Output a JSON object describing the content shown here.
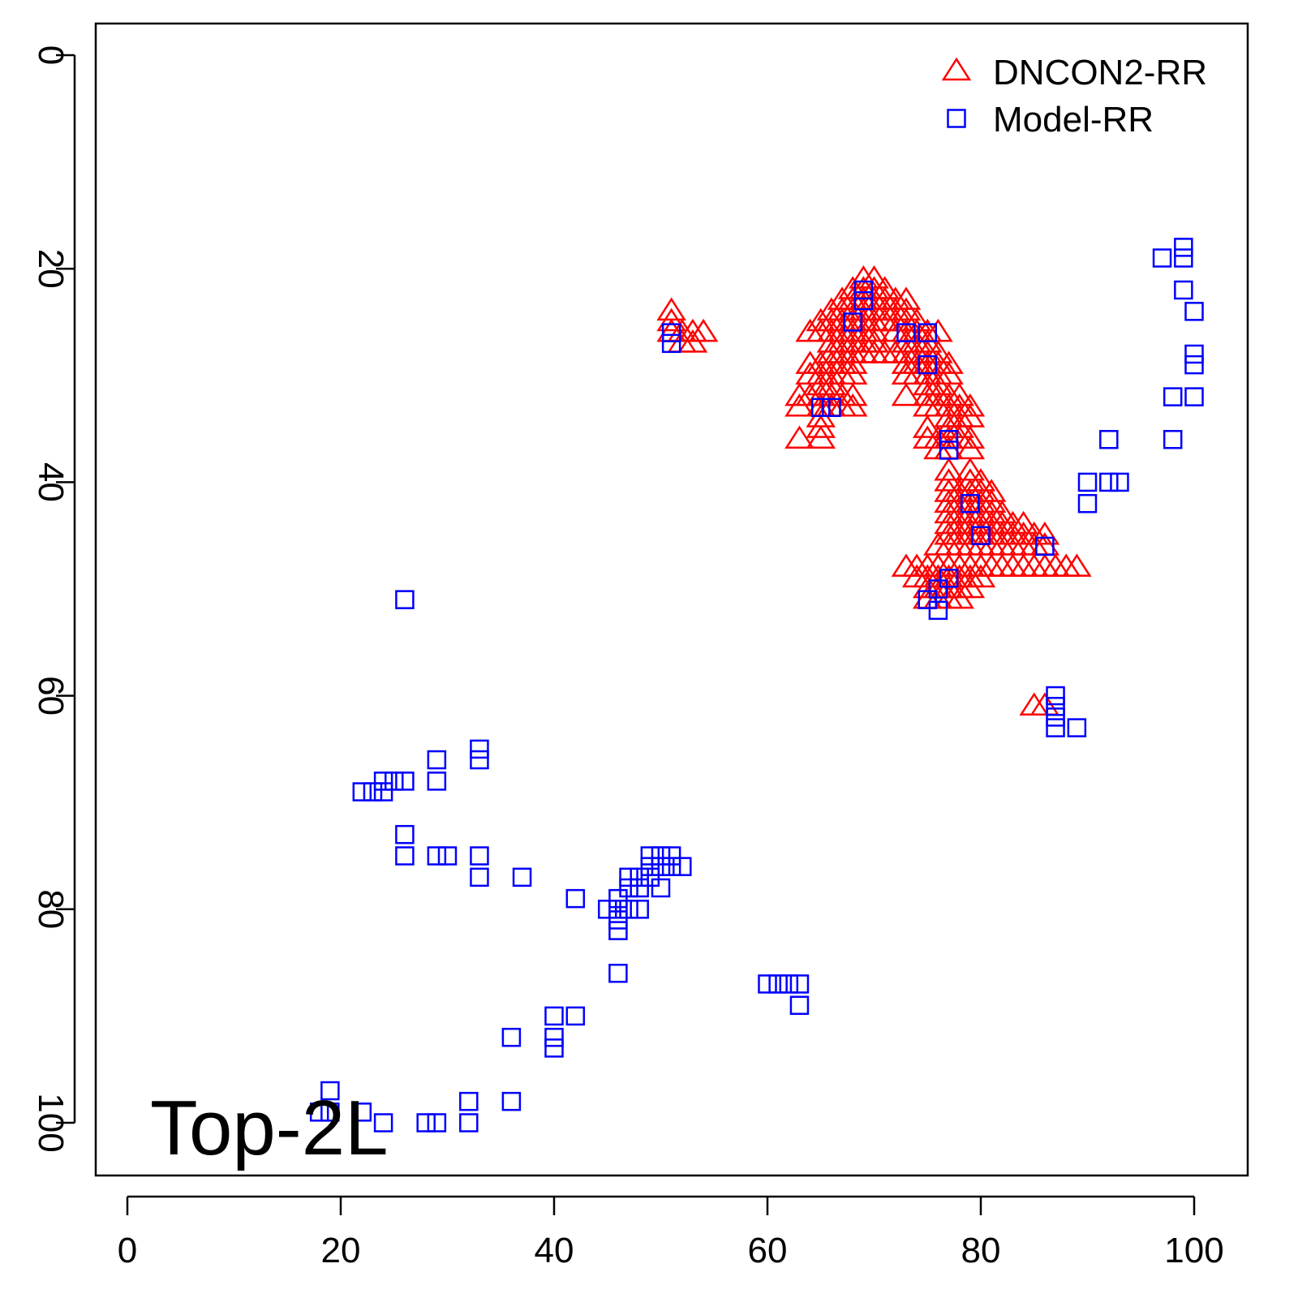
{
  "chart_data": {
    "type": "scatter",
    "annotation": "Top-2L",
    "xlim": [
      -1.5,
      106.5
    ],
    "ylim": [
      -3,
      105
    ],
    "y_inverted": true,
    "grid": false,
    "legend_placement": "top-right",
    "x_ticks": [
      0,
      20,
      40,
      60,
      80,
      100
    ],
    "y_ticks": [
      0,
      20,
      40,
      60,
      80,
      100
    ],
    "series": [
      {
        "name": "DNCON2-RR",
        "marker": "triangle",
        "color": "#ff0000",
        "points": [
          [
            51,
            24
          ],
          [
            51,
            25
          ],
          [
            51,
            26
          ],
          [
            52,
            26
          ],
          [
            53,
            26
          ],
          [
            54,
            26
          ],
          [
            52,
            27
          ],
          [
            53,
            27
          ],
          [
            69,
            21
          ],
          [
            70,
            21
          ],
          [
            68,
            22
          ],
          [
            69,
            22
          ],
          [
            70,
            22
          ],
          [
            71,
            22
          ],
          [
            67,
            23
          ],
          [
            68,
            23
          ],
          [
            69,
            23
          ],
          [
            70,
            23
          ],
          [
            71,
            23
          ],
          [
            72,
            23
          ],
          [
            73,
            23
          ],
          [
            66,
            24
          ],
          [
            67,
            24
          ],
          [
            68,
            24
          ],
          [
            69,
            24
          ],
          [
            70,
            24
          ],
          [
            71,
            24
          ],
          [
            72,
            24
          ],
          [
            73,
            24
          ],
          [
            65,
            25
          ],
          [
            66,
            25
          ],
          [
            67,
            25
          ],
          [
            68,
            25
          ],
          [
            69,
            25
          ],
          [
            70,
            25
          ],
          [
            71,
            25
          ],
          [
            72,
            25
          ],
          [
            73,
            25
          ],
          [
            74,
            25
          ],
          [
            64,
            26
          ],
          [
            65,
            26
          ],
          [
            66,
            26
          ],
          [
            67,
            26
          ],
          [
            68,
            26
          ],
          [
            69,
            26
          ],
          [
            70,
            26
          ],
          [
            72,
            26
          ],
          [
            73,
            26
          ],
          [
            74,
            26
          ],
          [
            75,
            26
          ],
          [
            76,
            26
          ],
          [
            66,
            27
          ],
          [
            67,
            27
          ],
          [
            68,
            27
          ],
          [
            69,
            27
          ],
          [
            70,
            27
          ],
          [
            73,
            27
          ],
          [
            74,
            27
          ],
          [
            75,
            27
          ],
          [
            66,
            28
          ],
          [
            67,
            28
          ],
          [
            68,
            28
          ],
          [
            69,
            28
          ],
          [
            70,
            28
          ],
          [
            71,
            28
          ],
          [
            72,
            28
          ],
          [
            73,
            28
          ],
          [
            74,
            28
          ],
          [
            75,
            28
          ],
          [
            76,
            28
          ],
          [
            64,
            29
          ],
          [
            65,
            29
          ],
          [
            66,
            29
          ],
          [
            67,
            29
          ],
          [
            68,
            29
          ],
          [
            73,
            29
          ],
          [
            74,
            29
          ],
          [
            75,
            29
          ],
          [
            76,
            29
          ],
          [
            77,
            29
          ],
          [
            64,
            30
          ],
          [
            65,
            30
          ],
          [
            66,
            30
          ],
          [
            67,
            30
          ],
          [
            68,
            30
          ],
          [
            73,
            30
          ],
          [
            74,
            30
          ],
          [
            75,
            30
          ],
          [
            76,
            30
          ],
          [
            77,
            30
          ],
          [
            65,
            31
          ],
          [
            66,
            31
          ],
          [
            75,
            31
          ],
          [
            76,
            31
          ],
          [
            63,
            32
          ],
          [
            64,
            32
          ],
          [
            65,
            32
          ],
          [
            66,
            32
          ],
          [
            67,
            32
          ],
          [
            68,
            32
          ],
          [
            73,
            32
          ],
          [
            75,
            32
          ],
          [
            76,
            32
          ],
          [
            77,
            32
          ],
          [
            78,
            32
          ],
          [
            63,
            33
          ],
          [
            65,
            33
          ],
          [
            66,
            33
          ],
          [
            67,
            33
          ],
          [
            68,
            33
          ],
          [
            75,
            33
          ],
          [
            76,
            33
          ],
          [
            77,
            33
          ],
          [
            78,
            33
          ],
          [
            79,
            33
          ],
          [
            65,
            34
          ],
          [
            77,
            34
          ],
          [
            78,
            34
          ],
          [
            79,
            34
          ],
          [
            65,
            35
          ],
          [
            75,
            35
          ],
          [
            77,
            35
          ],
          [
            78,
            35
          ],
          [
            63,
            36
          ],
          [
            65,
            36
          ],
          [
            75,
            36
          ],
          [
            76,
            36
          ],
          [
            77,
            36
          ],
          [
            78,
            36
          ],
          [
            79,
            36
          ],
          [
            76,
            37
          ],
          [
            77,
            37
          ],
          [
            79,
            37
          ],
          [
            77,
            39
          ],
          [
            79,
            39
          ],
          [
            77,
            40
          ],
          [
            79,
            40
          ],
          [
            80,
            40
          ],
          [
            77,
            41
          ],
          [
            78,
            41
          ],
          [
            79,
            41
          ],
          [
            80,
            41
          ],
          [
            81,
            41
          ],
          [
            77,
            42
          ],
          [
            78,
            42
          ],
          [
            79,
            42
          ],
          [
            80,
            42
          ],
          [
            81,
            42
          ],
          [
            77,
            43
          ],
          [
            78,
            43
          ],
          [
            79,
            43
          ],
          [
            80,
            43
          ],
          [
            81,
            43
          ],
          [
            82,
            43
          ],
          [
            77,
            44
          ],
          [
            78,
            44
          ],
          [
            79,
            44
          ],
          [
            80,
            44
          ],
          [
            81,
            44
          ],
          [
            82,
            44
          ],
          [
            83,
            44
          ],
          [
            84,
            44
          ],
          [
            77,
            45
          ],
          [
            78,
            45
          ],
          [
            79,
            45
          ],
          [
            80,
            45
          ],
          [
            81,
            45
          ],
          [
            82,
            45
          ],
          [
            83,
            45
          ],
          [
            84,
            45
          ],
          [
            85,
            45
          ],
          [
            86,
            45
          ],
          [
            76,
            46
          ],
          [
            77,
            46
          ],
          [
            78,
            46
          ],
          [
            79,
            46
          ],
          [
            80,
            46
          ],
          [
            81,
            46
          ],
          [
            82,
            46
          ],
          [
            83,
            46
          ],
          [
            84,
            46
          ],
          [
            85,
            46
          ],
          [
            86,
            46
          ],
          [
            73,
            48
          ],
          [
            74,
            48
          ],
          [
            75,
            48
          ],
          [
            76,
            48
          ],
          [
            77,
            48
          ],
          [
            78,
            48
          ],
          [
            79,
            48
          ],
          [
            80,
            48
          ],
          [
            81,
            48
          ],
          [
            82,
            48
          ],
          [
            83,
            48
          ],
          [
            84,
            48
          ],
          [
            85,
            48
          ],
          [
            86,
            48
          ],
          [
            87,
            48
          ],
          [
            88,
            48
          ],
          [
            89,
            48
          ],
          [
            74,
            49
          ],
          [
            75,
            49
          ],
          [
            76,
            49
          ],
          [
            77,
            49
          ],
          [
            78,
            49
          ],
          [
            79,
            49
          ],
          [
            80,
            49
          ],
          [
            75,
            50
          ],
          [
            76,
            50
          ],
          [
            77,
            50
          ],
          [
            78,
            50
          ],
          [
            79,
            50
          ],
          [
            75,
            51
          ],
          [
            76,
            51
          ],
          [
            77,
            51
          ],
          [
            78,
            51
          ],
          [
            85,
            61
          ],
          [
            86,
            61
          ]
        ]
      },
      {
        "name": "Model-RR",
        "marker": "square",
        "color": "#0000ff",
        "points": [
          [
            26,
            51
          ],
          [
            33,
            65
          ],
          [
            33,
            66
          ],
          [
            29,
            66
          ],
          [
            29,
            68
          ],
          [
            26,
            68
          ],
          [
            25,
            68
          ],
          [
            24,
            68
          ],
          [
            22,
            69
          ],
          [
            23,
            69
          ],
          [
            24,
            69
          ],
          [
            26,
            73
          ],
          [
            26,
            75
          ],
          [
            29,
            75
          ],
          [
            30,
            75
          ],
          [
            33,
            75
          ],
          [
            33,
            77
          ],
          [
            37,
            77
          ],
          [
            42,
            79
          ],
          [
            45,
            80
          ],
          [
            46,
            79
          ],
          [
            46,
            80
          ],
          [
            46,
            81
          ],
          [
            46,
            82
          ],
          [
            47,
            77
          ],
          [
            47,
            78
          ],
          [
            47,
            80
          ],
          [
            48,
            77
          ],
          [
            48,
            78
          ],
          [
            48,
            80
          ],
          [
            49,
            75
          ],
          [
            49,
            76
          ],
          [
            49,
            77
          ],
          [
            50,
            75
          ],
          [
            50,
            76
          ],
          [
            50,
            78
          ],
          [
            51,
            75
          ],
          [
            51,
            76
          ],
          [
            52,
            76
          ],
          [
            46,
            86
          ],
          [
            60,
            87
          ],
          [
            61,
            87
          ],
          [
            62,
            87
          ],
          [
            63,
            87
          ],
          [
            63,
            89
          ],
          [
            40,
            90
          ],
          [
            42,
            90
          ],
          [
            40,
            92
          ],
          [
            40,
            93
          ],
          [
            36,
            92
          ],
          [
            32,
            98
          ],
          [
            36,
            98
          ],
          [
            19,
            97
          ],
          [
            18,
            99
          ],
          [
            19,
            99
          ],
          [
            22,
            99
          ],
          [
            24,
            100
          ],
          [
            28,
            100
          ],
          [
            29,
            100
          ],
          [
            32,
            100
          ],
          [
            51,
            26
          ],
          [
            51,
            27
          ],
          [
            73,
            26
          ],
          [
            75,
            26
          ],
          [
            69,
            22
          ],
          [
            69,
            23
          ],
          [
            68,
            25
          ],
          [
            65,
            33
          ],
          [
            66,
            33
          ],
          [
            75,
            29
          ],
          [
            77,
            36
          ],
          [
            77,
            37
          ],
          [
            79,
            42
          ],
          [
            80,
            45
          ],
          [
            75,
            51
          ],
          [
            76,
            52
          ],
          [
            76,
            50
          ],
          [
            77,
            49
          ],
          [
            86,
            46
          ],
          [
            87,
            60
          ],
          [
            87,
            61
          ],
          [
            87,
            62
          ],
          [
            87,
            63
          ],
          [
            89,
            63
          ],
          [
            90,
            40
          ],
          [
            90,
            42
          ],
          [
            92,
            40
          ],
          [
            93,
            40
          ],
          [
            92,
            36
          ],
          [
            98,
            36
          ],
          [
            98,
            32
          ],
          [
            100,
            32
          ],
          [
            100,
            28
          ],
          [
            100,
            29
          ],
          [
            100,
            24
          ],
          [
            99,
            22
          ],
          [
            99,
            18
          ],
          [
            99,
            19
          ],
          [
            97,
            19
          ]
        ]
      }
    ]
  }
}
